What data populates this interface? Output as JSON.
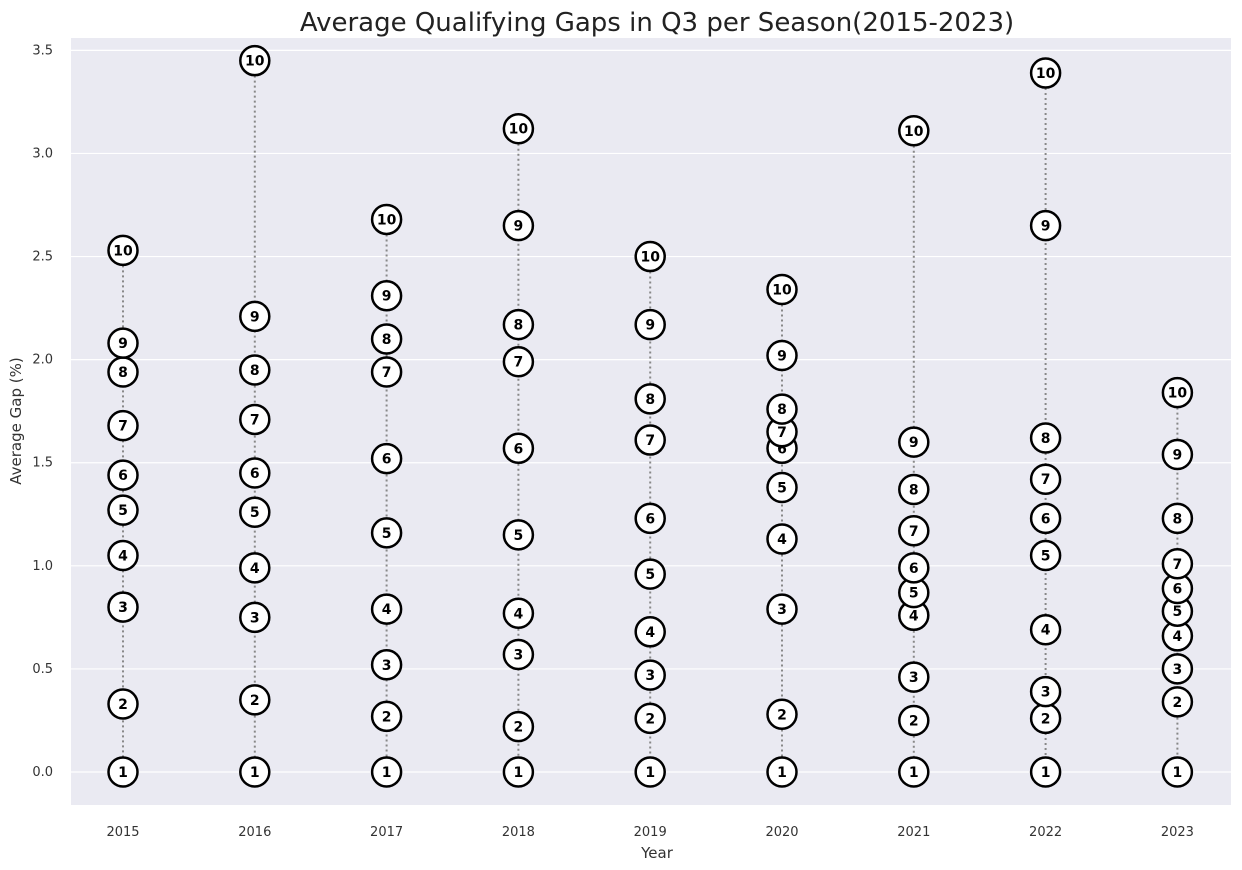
{
  "chart_data": {
    "type": "scatter",
    "title": "Average Qualifying Gaps in Q3 per Season(2015-2023)",
    "xlabel": "Year",
    "ylabel": "Average Gap (%)",
    "ylim": [
      -0.16,
      3.56
    ],
    "yticks": [
      0.0,
      0.5,
      1.0,
      1.5,
      2.0,
      2.5,
      3.0,
      3.5
    ],
    "ytick_labels": [
      "0.0",
      "0.5",
      "1.0",
      "1.5",
      "2.0",
      "2.5",
      "3.0",
      "3.5"
    ],
    "categories": [
      "2015",
      "2016",
      "2017",
      "2018",
      "2019",
      "2020",
      "2021",
      "2022",
      "2023"
    ],
    "grid": true,
    "positions": [
      "1",
      "2",
      "3",
      "4",
      "5",
      "6",
      "7",
      "8",
      "9",
      "10"
    ],
    "seasons": [
      {
        "year": "2015",
        "gaps": [
          0.0,
          0.33,
          0.8,
          1.05,
          1.27,
          1.44,
          1.68,
          1.94,
          2.08,
          2.53
        ]
      },
      {
        "year": "2016",
        "gaps": [
          0.0,
          0.35,
          0.75,
          0.99,
          1.26,
          1.45,
          1.71,
          1.95,
          2.21,
          3.45
        ]
      },
      {
        "year": "2017",
        "gaps": [
          0.0,
          0.27,
          0.52,
          0.79,
          1.16,
          1.52,
          1.94,
          2.1,
          2.31,
          2.68
        ]
      },
      {
        "year": "2018",
        "gaps": [
          0.0,
          0.22,
          0.57,
          0.77,
          1.15,
          1.57,
          1.99,
          2.17,
          2.65,
          3.12
        ]
      },
      {
        "year": "2019",
        "gaps": [
          0.0,
          0.26,
          0.47,
          0.68,
          0.96,
          1.23,
          1.61,
          1.81,
          2.17,
          2.5
        ]
      },
      {
        "year": "2020",
        "gaps": [
          0.0,
          0.28,
          0.79,
          1.13,
          1.38,
          1.57,
          1.65,
          1.76,
          2.02,
          2.34
        ]
      },
      {
        "year": "2021",
        "gaps": [
          0.0,
          0.25,
          0.46,
          0.76,
          0.87,
          0.99,
          1.17,
          1.37,
          1.6,
          3.11
        ]
      },
      {
        "year": "2022",
        "gaps": [
          0.0,
          0.26,
          0.39,
          0.69,
          1.05,
          1.23,
          1.42,
          1.62,
          2.65,
          3.39
        ]
      },
      {
        "year": "2023",
        "gaps": [
          0.0,
          0.34,
          0.5,
          0.66,
          0.78,
          0.89,
          1.01,
          1.23,
          1.54,
          1.84
        ]
      }
    ],
    "colors": {
      "plot_background": "#eaeaf2",
      "grid": "#ffffff",
      "connector": "#888888",
      "marker_fill": "#ffffff",
      "marker_edge": "#000000"
    }
  }
}
